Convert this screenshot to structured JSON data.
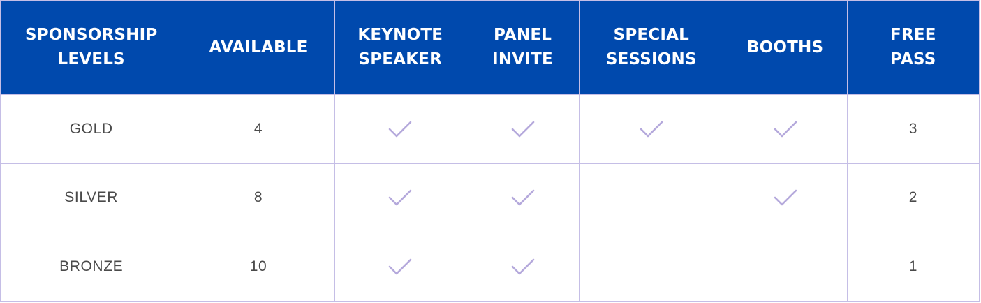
{
  "table": {
    "headers": [
      {
        "lines": [
          "SPONSORSHIP",
          "LEVELS"
        ]
      },
      {
        "lines": [
          "AVAILABLE"
        ]
      },
      {
        "lines": [
          "KEYNOTE",
          "SPEAKER"
        ]
      },
      {
        "lines": [
          "PANEL",
          "INVITE"
        ]
      },
      {
        "lines": [
          "SPECIAL",
          "SESSIONS"
        ]
      },
      {
        "lines": [
          "BOOTHS"
        ]
      },
      {
        "lines": [
          "FREE",
          "PASS"
        ]
      }
    ],
    "rows": [
      {
        "level": "GOLD",
        "available": "4",
        "keynote": true,
        "panel": true,
        "special": true,
        "booths": true,
        "free_pass": "3"
      },
      {
        "level": "SILVER",
        "available": "8",
        "keynote": true,
        "panel": true,
        "special": false,
        "booths": true,
        "free_pass": "2"
      },
      {
        "level": "BRONZE",
        "available": "10",
        "keynote": true,
        "panel": true,
        "special": false,
        "booths": false,
        "free_pass": "1"
      }
    ]
  },
  "colors": {
    "header_bg": "#0049ad",
    "header_text": "#ffffff",
    "border": "#c5bee6",
    "check": "#b5a9dc",
    "body_text": "#4a4a4a"
  },
  "icons": {
    "check": "check-icon"
  }
}
